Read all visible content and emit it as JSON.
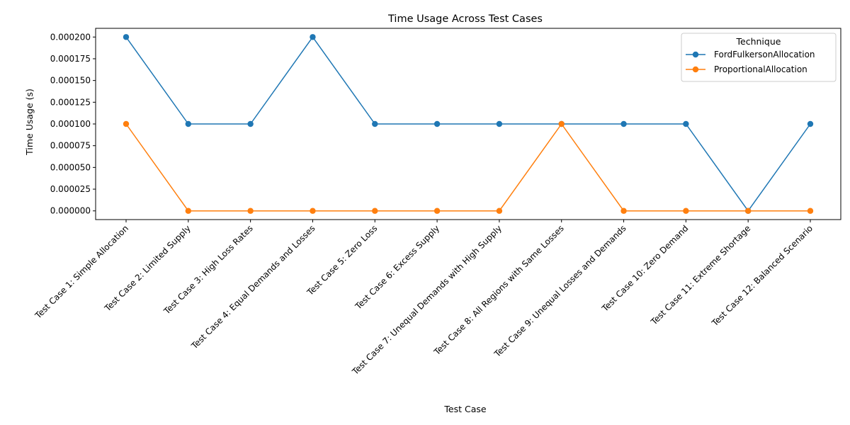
{
  "chart_data": {
    "type": "line",
    "title": "Time Usage Across Test Cases",
    "xlabel": "Test Case",
    "ylabel": "Time Usage (s)",
    "ylim": [
      -1e-05,
      0.00021
    ],
    "yticks": [
      0.0,
      2.5e-05,
      5e-05,
      7.5e-05,
      0.0001,
      0.000125,
      0.00015,
      0.000175,
      0.0002
    ],
    "ytick_labels": [
      "0.000000",
      "0.000025",
      "0.000050",
      "0.000075",
      "0.000100",
      "0.000125",
      "0.000150",
      "0.000175",
      "0.000200"
    ],
    "categories": [
      "Test Case 1: Simple Allocation",
      "Test Case 2: Limited Supply",
      "Test Case 3: High Loss Rates",
      "Test Case 4: Equal Demands and Losses",
      "Test Case 5: Zero Loss",
      "Test Case 6: Excess Supply",
      "Test Case 7: Unequal Demands with High Supply",
      "Test Case 8: All Regions with Same Losses",
      "Test Case 9: Unequal Losses and Demands",
      "Test Case 10: Zero Demand",
      "Test Case 11: Extreme Shortage",
      "Test Case 12: Balanced Scenario"
    ],
    "legend_title": "Technique",
    "legend_position": "top-right",
    "grid": false,
    "series": [
      {
        "name": "FordFulkersonAllocation",
        "color": "#1f77b4",
        "values": [
          0.0002,
          0.0001,
          0.0001,
          0.0002,
          0.0001,
          0.0001,
          0.0001,
          0.0001,
          0.0001,
          0.0001,
          0.0,
          0.0001
        ]
      },
      {
        "name": "ProportionalAllocation",
        "color": "#ff7f0e",
        "values": [
          0.0001,
          0.0,
          0.0,
          0.0,
          0.0,
          0.0,
          0.0,
          0.0001,
          0.0,
          0.0,
          0.0,
          0.0
        ]
      }
    ]
  }
}
